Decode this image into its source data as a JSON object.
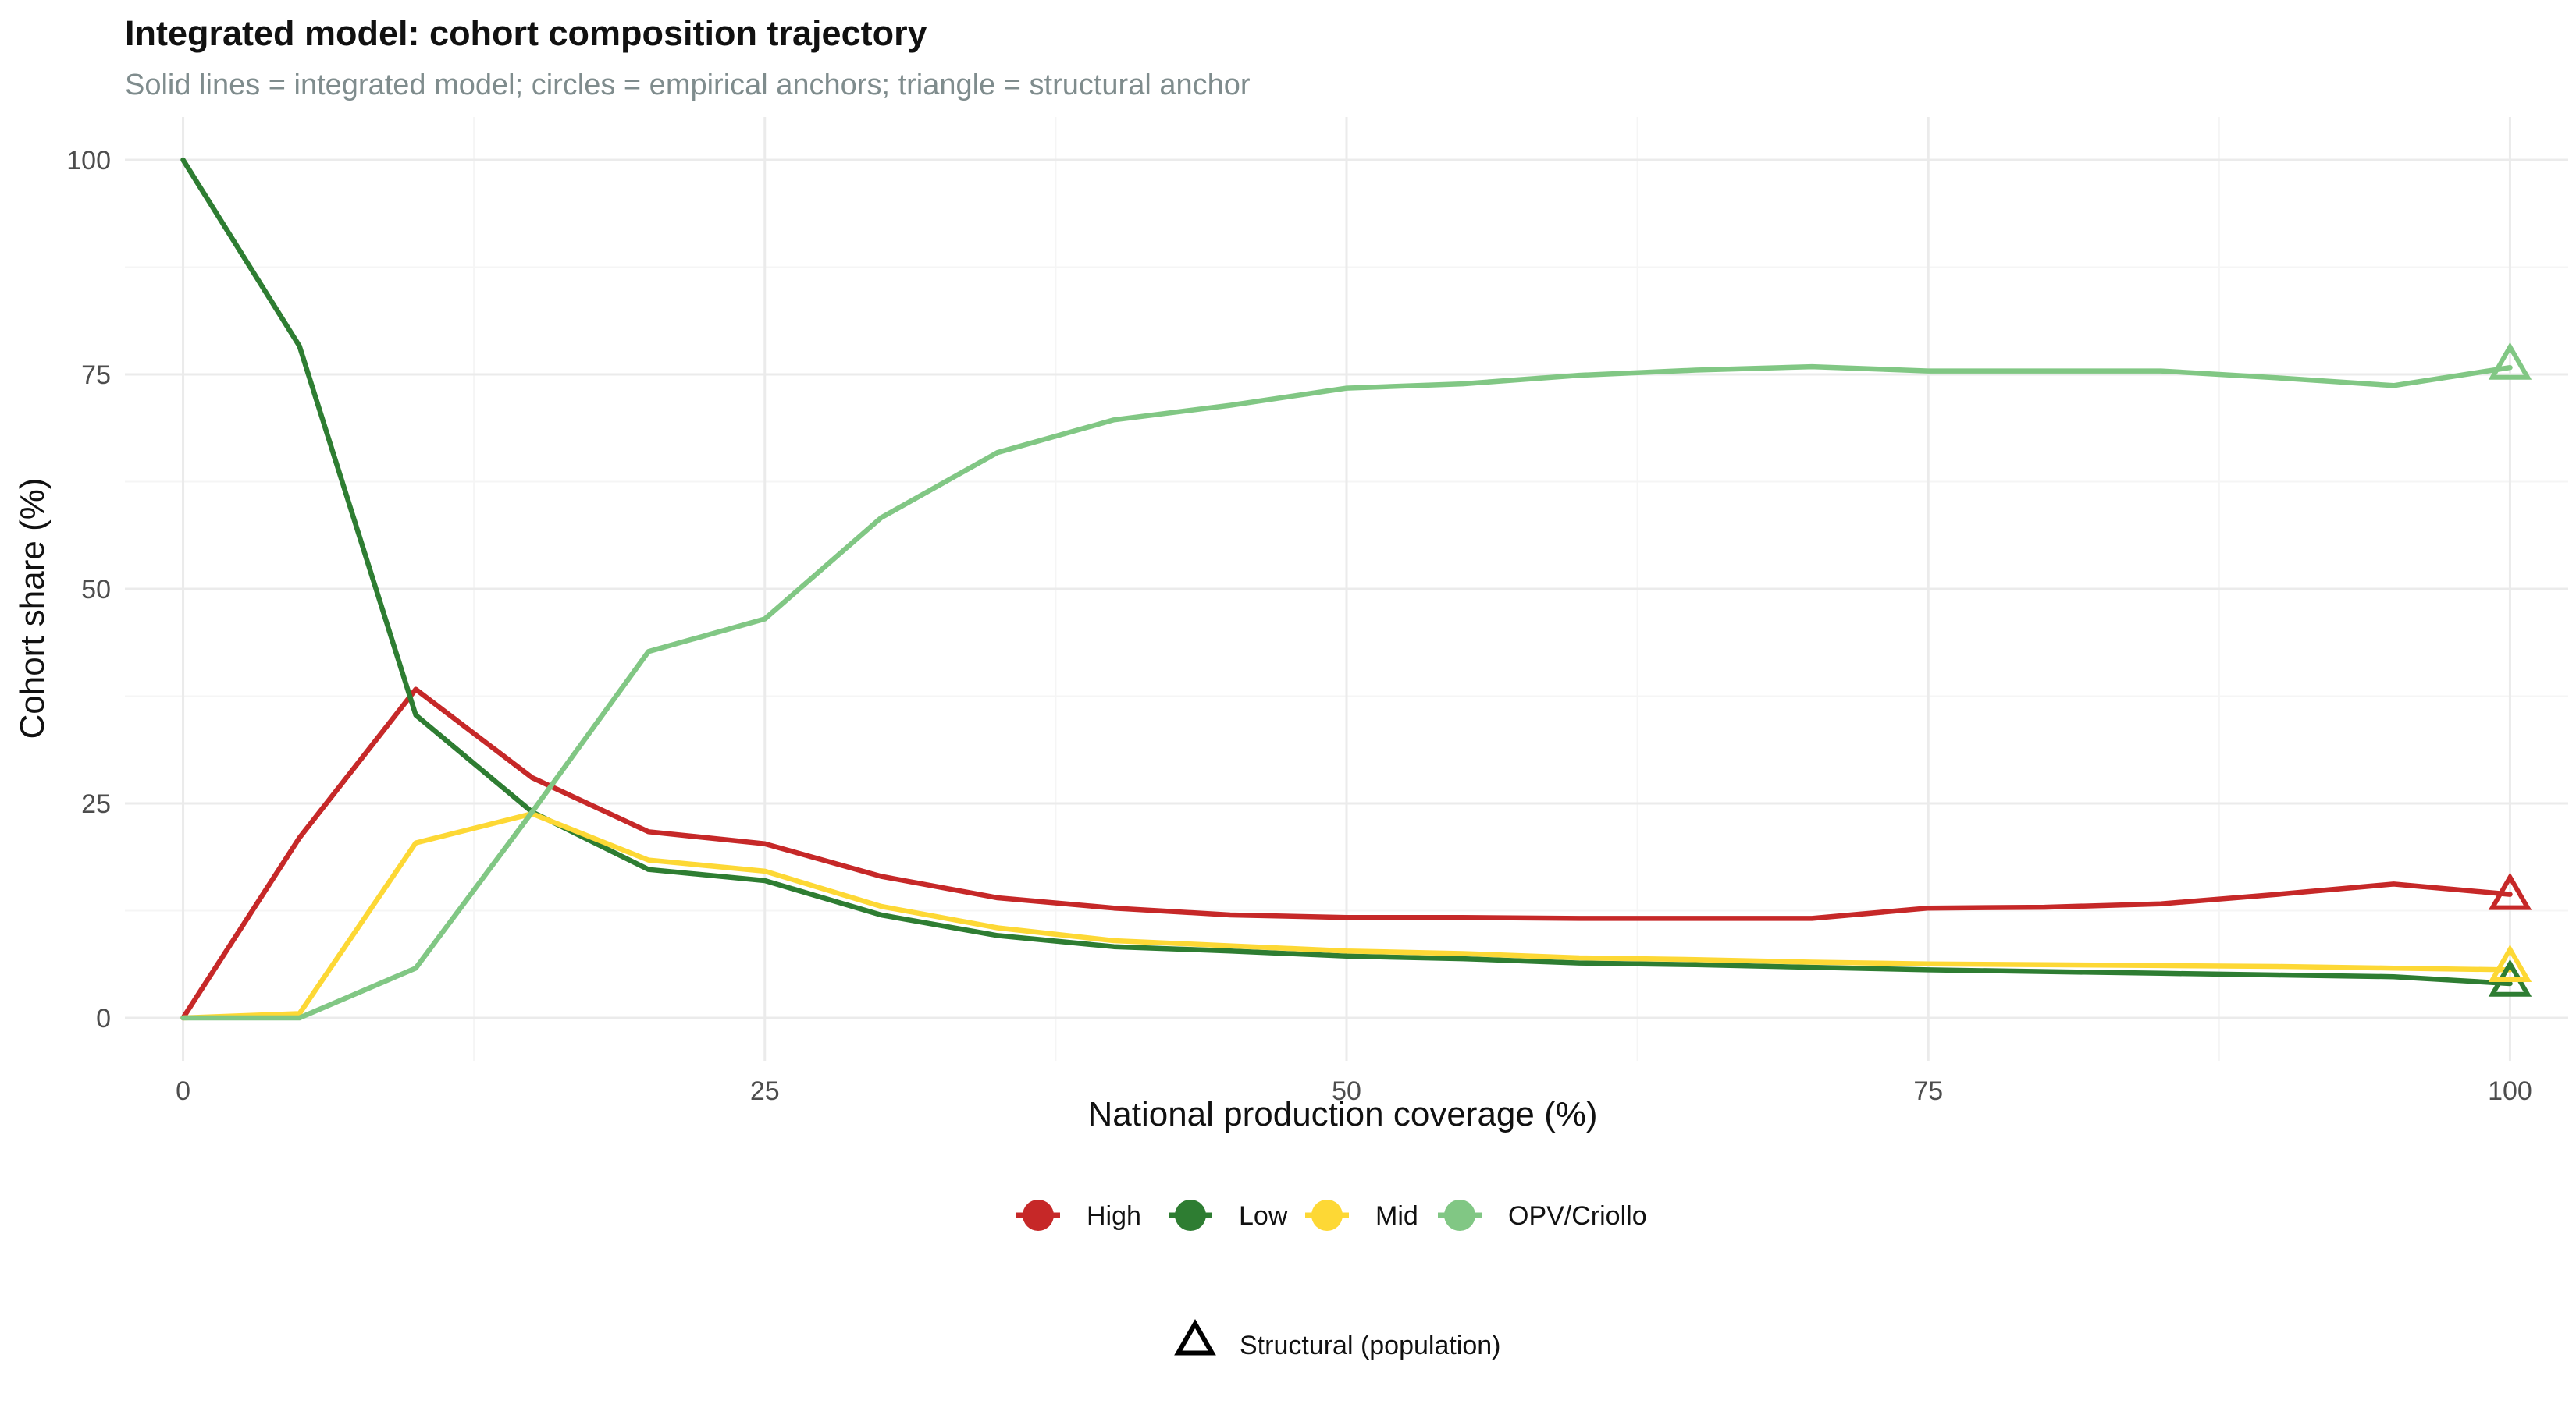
{
  "chart_data": {
    "type": "line",
    "title": "Integrated model: cohort composition trajectory",
    "subtitle": "Solid lines = integrated model; circles = empirical anchors; triangle = structural anchor",
    "xlabel": "National production coverage (%)",
    "ylabel": "Cohort share (%)",
    "xlim": [
      -2.5,
      102.5
    ],
    "ylim": [
      -5,
      105
    ],
    "x_ticks": [
      0,
      25,
      50,
      75,
      100
    ],
    "y_ticks": [
      0,
      25,
      50,
      75,
      100
    ],
    "grid": true,
    "legend_position": "bottom",
    "x": [
      0,
      5,
      10,
      15,
      20,
      25,
      30,
      35,
      40,
      45,
      50,
      55,
      60,
      65,
      70,
      75,
      80,
      85,
      90,
      95,
      100
    ],
    "series": [
      {
        "name": "High",
        "color": "#c62828",
        "values": [
          0,
          21,
          38.3,
          28,
          21.7,
          20.3,
          16.5,
          14,
          12.8,
          12,
          11.7,
          11.7,
          11.6,
          11.6,
          11.6,
          12.8,
          12.9,
          13.3,
          14.4,
          15.6,
          14.4
        ]
      },
      {
        "name": "Low",
        "color": "#2e7d32",
        "values": [
          100,
          78.3,
          35.3,
          24,
          17.3,
          16,
          12,
          9.6,
          8.3,
          7.8,
          7.2,
          6.9,
          6.4,
          6.2,
          5.9,
          5.6,
          5.4,
          5.2,
          5,
          4.8,
          4
        ]
      },
      {
        "name": "Mid",
        "color": "#fdd835",
        "values": [
          0,
          0.5,
          20.4,
          23.8,
          18.4,
          17.1,
          13,
          10.5,
          9,
          8.4,
          7.8,
          7.5,
          7,
          6.8,
          6.5,
          6.3,
          6.2,
          6.1,
          6,
          5.8,
          5.6
        ]
      },
      {
        "name": "OPV/Criollo",
        "color": "#81c784",
        "values": [
          0,
          0,
          5.8,
          24,
          42.7,
          46.5,
          58.3,
          65.9,
          69.7,
          71.4,
          73.4,
          73.9,
          74.9,
          75.5,
          75.9,
          75.4,
          75.4,
          75.4,
          74.6,
          73.7,
          75.8
        ]
      }
    ],
    "structural_anchor": {
      "x": 100,
      "values": {
        "High": 14.4,
        "Low": 4.3,
        "Mid": 6,
        "OPV/Criollo": 76.2
      }
    },
    "legend": {
      "items": [
        "High",
        "Low",
        "Mid",
        "OPV/Criollo"
      ],
      "shape_label": "Structural (population)"
    },
    "colors": {
      "High": "#c62828",
      "Low": "#2e7d32",
      "Mid": "#fdd835",
      "OPV/Criollo": "#81c784",
      "grid_major": "#ebebeb",
      "grid_minor": "#f5f5f5"
    }
  }
}
